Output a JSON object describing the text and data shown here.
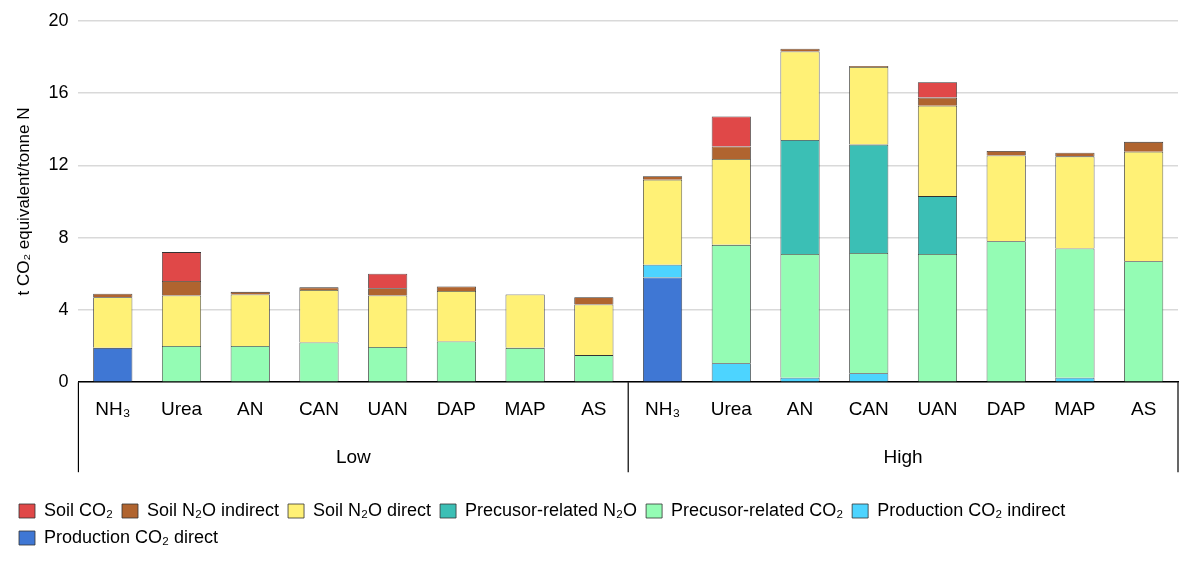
{
  "chart_data": {
    "type": "bar",
    "stacked": true,
    "ylabel": "t CO₂ equivalent/tonne N",
    "categories": [
      "NH₃",
      "Urea",
      "AN",
      "CAN",
      "UAN",
      "DAP",
      "MAP",
      "AS",
      "NH₃",
      "Urea",
      "AN",
      "CAN",
      "UAN",
      "DAP",
      "MAP",
      "AS"
    ],
    "annotations": [
      "Low",
      "High"
    ],
    "ylim": [
      0,
      20
    ],
    "yticks": [
      0,
      4,
      8,
      12,
      16,
      20
    ],
    "grid": "y",
    "legend": "bottom",
    "series": [
      {
        "name": "Production CO₂ direct",
        "color": "#3f77d4",
        "values": [
          1.9,
          null,
          null,
          null,
          null,
          null,
          null,
          null,
          5.8,
          null,
          null,
          null,
          null,
          null,
          null,
          null
        ]
      },
      {
        "name": "Production CO₂ indirect",
        "color": "#4dd4ff",
        "values": [
          null,
          null,
          null,
          null,
          null,
          null,
          null,
          null,
          0.7,
          1.05,
          0.25,
          0.5,
          null,
          null,
          0.25,
          null
        ]
      },
      {
        "name": "Precusor-related CO₂",
        "color": "#94fcb4",
        "values": [
          null,
          2.0,
          2.0,
          2.2,
          1.95,
          2.25,
          1.9,
          1.5,
          null,
          6.55,
          6.85,
          6.65,
          7.1,
          7.8,
          7.15,
          6.7
        ]
      },
      {
        "name": "Precusor-related N₂O",
        "color": "#3bbfb5",
        "values": [
          null,
          null,
          null,
          null,
          null,
          null,
          null,
          null,
          null,
          null,
          6.3,
          6.0,
          3.2,
          null,
          null,
          null
        ]
      },
      {
        "name": "Soil N₂O direct",
        "color": "#fff176",
        "values": [
          2.8,
          2.8,
          2.85,
          2.9,
          2.85,
          2.8,
          2.95,
          2.8,
          4.7,
          4.75,
          4.9,
          4.3,
          5.0,
          4.75,
          5.1,
          6.05
        ]
      },
      {
        "name": "Soil N₂O indirect",
        "color": "#b0642f",
        "values": [
          0.2,
          0.8,
          0.15,
          0.15,
          0.4,
          0.25,
          null,
          0.4,
          0.2,
          0.7,
          0.15,
          0.05,
          0.45,
          0.25,
          0.2,
          0.55
        ]
      },
      {
        "name": "Soil CO₂",
        "color": "#e04848",
        "values": [
          null,
          1.6,
          null,
          null,
          0.8,
          null,
          null,
          null,
          null,
          1.65,
          null,
          null,
          0.85,
          null,
          null,
          null
        ]
      }
    ]
  }
}
